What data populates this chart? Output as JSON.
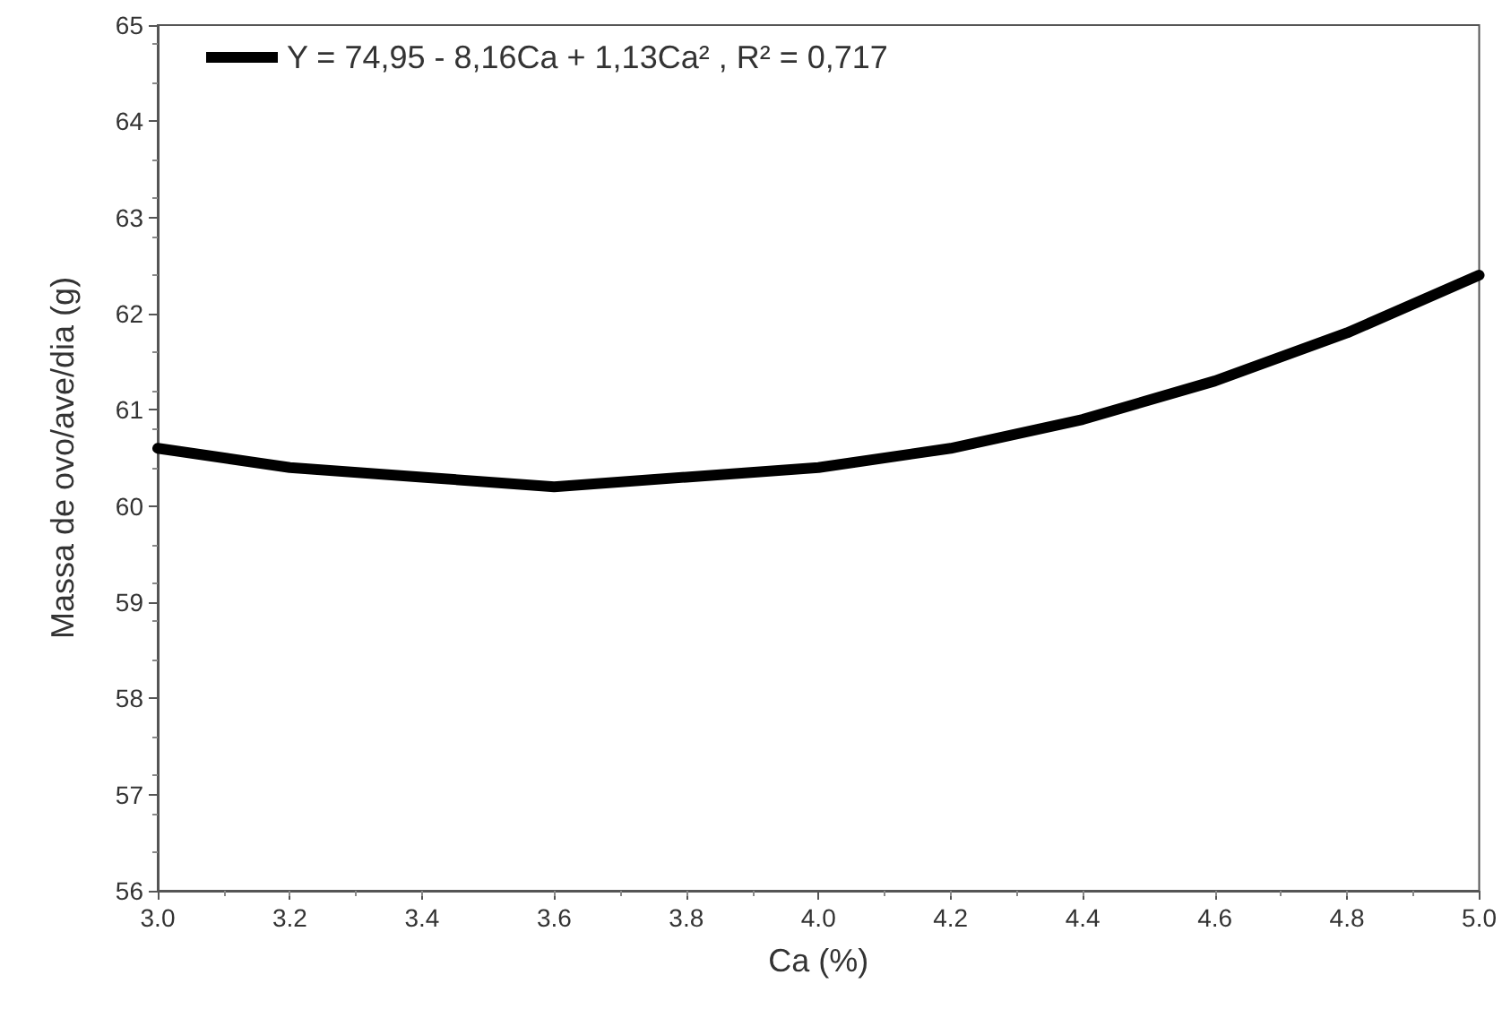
{
  "chart_data": {
    "type": "line",
    "xlabel": "Ca (%)",
    "ylabel": "Massa de ovo/ave/dia (g)",
    "x": [
      3.0,
      3.2,
      3.4,
      3.6,
      3.8,
      4.0,
      4.2,
      4.4,
      4.6,
      4.8,
      5.0
    ],
    "series": [
      {
        "name": "Y = 74,95 - 8,16Ca + 1,13Ca² , R² = 0,717",
        "color": "#000000",
        "values": [
          60.6,
          60.4,
          60.3,
          60.2,
          60.3,
          60.4,
          60.6,
          60.9,
          61.3,
          61.8,
          62.4
        ]
      }
    ],
    "xlim": [
      3.0,
      5.0
    ],
    "xticks": [
      {
        "value": 3.0,
        "label": "3.0"
      },
      {
        "value": 3.2,
        "label": "3.2"
      },
      {
        "value": 3.4,
        "label": "3.4"
      },
      {
        "value": 3.6,
        "label": "3.6"
      },
      {
        "value": 3.8,
        "label": "3.8"
      },
      {
        "value": 4.0,
        "label": "4.0"
      },
      {
        "value": 4.2,
        "label": "4.2"
      },
      {
        "value": 4.4,
        "label": "4.4"
      },
      {
        "value": 4.6,
        "label": "4.6"
      },
      {
        "value": 4.8,
        "label": "4.8"
      },
      {
        "value": 5.0,
        "label": "5.0"
      }
    ],
    "ylim": [
      56,
      65
    ],
    "yticks": [
      56,
      57,
      58,
      59,
      60,
      61,
      62,
      63,
      64,
      65
    ],
    "grid": false,
    "legend": "top left",
    "marker": "none",
    "line_style": "solid"
  }
}
